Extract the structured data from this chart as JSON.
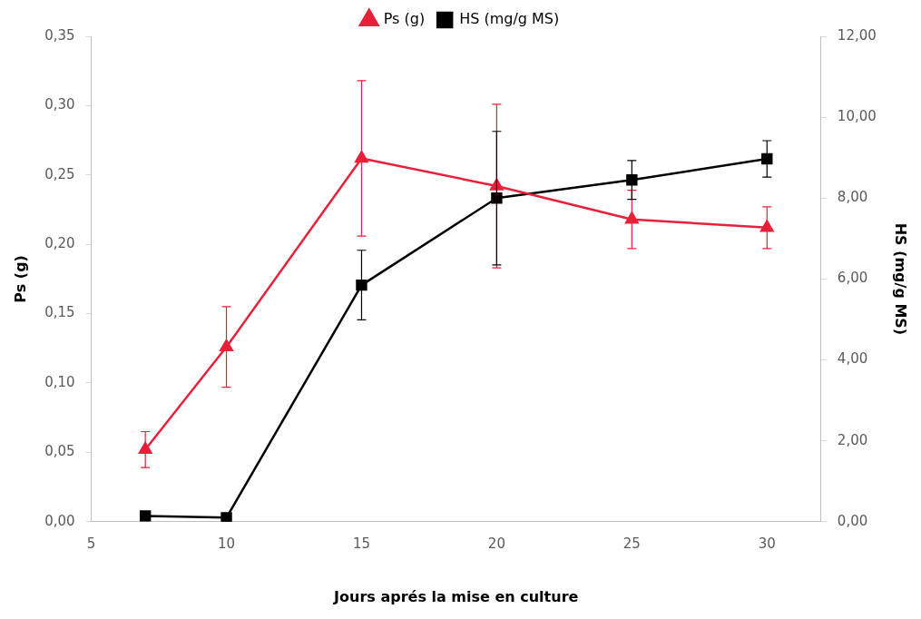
{
  "chart_data": {
    "type": "line",
    "xlabel": "Jours aprés la mise en culture",
    "ylabel": "Ps (g)",
    "y2label": "HS (mg/g MS)",
    "x": [
      7,
      10,
      15,
      20,
      25,
      30
    ],
    "series": [
      {
        "name": "Ps (g)",
        "color": "#e8203a",
        "marker": "triangle",
        "values": [
          0.052,
          0.126,
          0.262,
          0.242,
          0.218,
          0.212
        ],
        "errors": [
          0.013,
          0.029,
          0.056,
          0.059,
          0.021,
          0.015
        ]
      },
      {
        "name": "HS (mg/g MS)",
        "color": "#000000",
        "marker": "square",
        "axis": "y2",
        "values": [
          0.14,
          0.1,
          5.85,
          8.0,
          8.45,
          8.97
        ],
        "errors": [
          null,
          null,
          0.86,
          1.65,
          0.48,
          0.45
        ]
      }
    ],
    "xlim": [
      5,
      32
    ],
    "xticks": [
      5,
      10,
      15,
      20,
      25,
      30
    ],
    "ylim": [
      0,
      0.35
    ],
    "yticks": [
      {
        "value": 0,
        "label": "0,00"
      },
      {
        "value": 0.05,
        "label": "0,05"
      },
      {
        "value": 0.1,
        "label": "0,10"
      },
      {
        "value": 0.15,
        "label": "0,15"
      },
      {
        "value": 0.2,
        "label": "0,20"
      },
      {
        "value": 0.25,
        "label": "0,25"
      },
      {
        "value": 0.3,
        "label": "0,30"
      },
      {
        "value": 0.35,
        "label": "0,35"
      }
    ],
    "y2lim": [
      0,
      12
    ],
    "y2ticks": [
      {
        "value": 0,
        "label": "0,00"
      },
      {
        "value": 2,
        "label": "2,00"
      },
      {
        "value": 4,
        "label": "4,00"
      },
      {
        "value": 6,
        "label": "6,00"
      },
      {
        "value": 8,
        "label": "8,00"
      },
      {
        "value": 10,
        "label": "10,00"
      },
      {
        "value": 12,
        "label": "12,00"
      }
    ],
    "grid": false,
    "legend": "top",
    "line_style": "solid"
  }
}
